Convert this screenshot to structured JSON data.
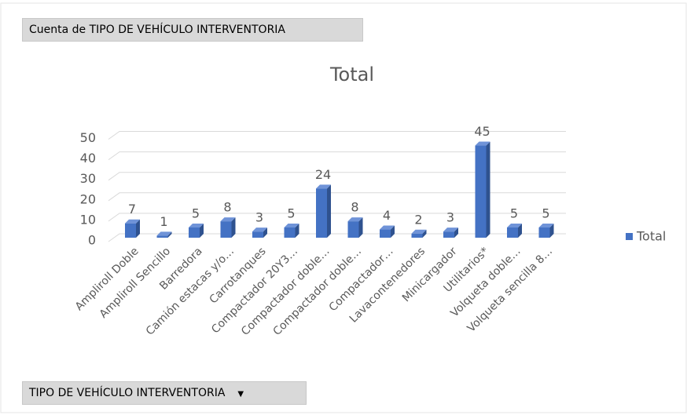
{
  "fields": {
    "values": "Cuenta de TIPO DE VEHÍCULO INTERVENTORIA",
    "axis": "TIPO DE VEHÍCULO INTERVENTORIA"
  },
  "chart_data": {
    "type": "bar3d",
    "title": "Total",
    "categories": [
      "Ampliroll Doble",
      "Ampliroll Sencillo",
      "Barredora",
      "Camión estacas y/o…",
      "Carrotanques",
      "Compactador 20Y3…",
      "Compactador doble…",
      "Compactador doble…",
      "Compactador…",
      "Lavacontenedores",
      "Minicargador",
      "Utilitarios*",
      "Volqueta doble…",
      "Volqueta sencilla 8…"
    ],
    "series": [
      {
        "name": "Total",
        "color": "#4472c4",
        "values": [
          7,
          1,
          5,
          8,
          3,
          5,
          24,
          8,
          4,
          2,
          3,
          45,
          5,
          5
        ]
      }
    ],
    "ylim": [
      0,
      50
    ],
    "yticks": [
      0,
      10,
      20,
      30,
      40,
      50
    ],
    "grid": true,
    "legend": "right"
  }
}
